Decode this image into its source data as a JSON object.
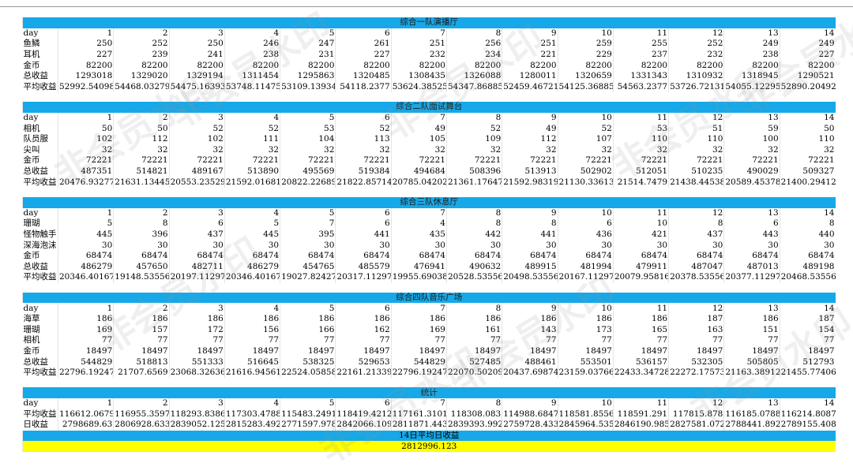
{
  "watermark": "非会员水印",
  "sections": [
    {
      "title": "综合一队演播厅",
      "rows": [
        {
          "label": "day",
          "values": [
            "1",
            "2",
            "3",
            "4",
            "5",
            "6",
            "7",
            "8",
            "9",
            "10",
            "11",
            "12",
            "13",
            "14"
          ]
        },
        {
          "label": "鱼鳞",
          "values": [
            "250",
            "252",
            "250",
            "246",
            "247",
            "261",
            "251",
            "256",
            "251",
            "259",
            "255",
            "252",
            "249",
            "249"
          ]
        },
        {
          "label": "耳机",
          "values": [
            "227",
            "239",
            "241",
            "238",
            "231",
            "227",
            "232",
            "234",
            "221",
            "229",
            "237",
            "232",
            "238",
            "227"
          ]
        },
        {
          "label": "金币",
          "values": [
            "82200",
            "82200",
            "82200",
            "82200",
            "82200",
            "82200",
            "82200",
            "82200",
            "82200",
            "82200",
            "82200",
            "82200",
            "82200",
            "82200"
          ]
        },
        {
          "label": "总收益",
          "values": [
            "1293018",
            "1329020",
            "1329194",
            "1311454",
            "1295863",
            "1320485",
            "1308435",
            "1326088",
            "1280011",
            "1320659",
            "1331343",
            "1310932",
            "1318945",
            "1290521"
          ]
        },
        {
          "label": "平均收益",
          "values": [
            "52992.54098",
            "54468.03279",
            "54475.16393",
            "53748.11475",
            "53109.13934",
            "54118.2377",
            "53624.38525",
            "54347.86885",
            "52459.46721",
            "54125.36885",
            "54563.2377",
            "53726.72131",
            "54055.12295",
            "52890.20492"
          ]
        }
      ]
    },
    {
      "title": "综合二队面试舞台",
      "rows": [
        {
          "label": "day",
          "values": [
            "1",
            "2",
            "3",
            "4",
            "5",
            "6",
            "7",
            "8",
            "9",
            "10",
            "11",
            "12",
            "13",
            "14"
          ]
        },
        {
          "label": "相机",
          "values": [
            "50",
            "50",
            "52",
            "52",
            "53",
            "52",
            "49",
            "52",
            "49",
            "52",
            "53",
            "51",
            "59",
            "50"
          ]
        },
        {
          "label": "队员服",
          "values": [
            "102",
            "112",
            "102",
            "111",
            "104",
            "113",
            "105",
            "109",
            "112",
            "107",
            "110",
            "110",
            "100",
            "110"
          ]
        },
        {
          "label": "尖叫",
          "values": [
            "32",
            "32",
            "32",
            "32",
            "32",
            "32",
            "32",
            "32",
            "32",
            "32",
            "32",
            "32",
            "32",
            "32"
          ]
        },
        {
          "label": "金币",
          "values": [
            "72221",
            "72221",
            "72221",
            "72221",
            "72221",
            "72221",
            "72221",
            "72221",
            "72221",
            "72221",
            "72221",
            "72221",
            "72221",
            "72221"
          ]
        },
        {
          "label": "总收益",
          "values": [
            "487351",
            "514821",
            "489167",
            "513890",
            "495569",
            "519384",
            "494684",
            "508396",
            "513913",
            "502902",
            "512051",
            "510235",
            "490029",
            "509327"
          ]
        },
        {
          "label": "平均收益",
          "values": [
            "20476.93277",
            "21631.13445",
            "20553.23529",
            "21592.01681",
            "20822.22689",
            "21822.85714",
            "20785.04202",
            "21361.17647",
            "21592.98319",
            "21130.33613",
            "21514.7479",
            "21438.44538",
            "20589.45378",
            "21400.29412"
          ]
        }
      ]
    },
    {
      "title": "综合三队休息厅",
      "rows": [
        {
          "label": "day",
          "values": [
            "1",
            "2",
            "3",
            "4",
            "5",
            "6",
            "7",
            "8",
            "9",
            "10",
            "11",
            "12",
            "13",
            "14"
          ]
        },
        {
          "label": "珊瑚",
          "values": [
            "5",
            "8",
            "6",
            "5",
            "7",
            "6",
            "4",
            "8",
            "8",
            "6",
            "10",
            "8",
            "6",
            "8"
          ]
        },
        {
          "label": "怪物触手",
          "values": [
            "445",
            "396",
            "437",
            "445",
            "395",
            "441",
            "435",
            "442",
            "441",
            "436",
            "421",
            "437",
            "443",
            "440"
          ]
        },
        {
          "label": "深海泡沫",
          "values": [
            "30",
            "30",
            "30",
            "30",
            "30",
            "30",
            "30",
            "30",
            "30",
            "30",
            "30",
            "30",
            "30",
            "30"
          ]
        },
        {
          "label": "金币",
          "values": [
            "68474",
            "68474",
            "68474",
            "68474",
            "68474",
            "68474",
            "68474",
            "68474",
            "68474",
            "68474",
            "68474",
            "68474",
            "68474",
            "68474"
          ]
        },
        {
          "label": "总收益",
          "values": [
            "486279",
            "457650",
            "482711",
            "486279",
            "454765",
            "485579",
            "476941",
            "490632",
            "489915",
            "481994",
            "479911",
            "487047",
            "487013",
            "489198"
          ]
        },
        {
          "label": "平均收益",
          "values": [
            "20346.40167",
            "19148.53556",
            "20197.11297",
            "20346.40167",
            "19027.82427",
            "20317.11297",
            "19955.69038",
            "20528.53556",
            "20498.53556",
            "20167.11297",
            "20079.95816",
            "20378.53556",
            "20377.11297",
            "20468.53556"
          ]
        }
      ]
    },
    {
      "title": "综合四队音乐广场",
      "rows": [
        {
          "label": "day",
          "values": [
            "1",
            "2",
            "3",
            "4",
            "5",
            "6",
            "7",
            "8",
            "9",
            "10",
            "11",
            "12",
            "13",
            "14"
          ]
        },
        {
          "label": "海草",
          "values": [
            "186",
            "186",
            "186",
            "186",
            "186",
            "186",
            "186",
            "186",
            "186",
            "186",
            "186",
            "187",
            "186",
            "187"
          ]
        },
        {
          "label": "珊瑚",
          "values": [
            "169",
            "157",
            "172",
            "156",
            "166",
            "162",
            "169",
            "161",
            "143",
            "173",
            "165",
            "163",
            "151",
            "154"
          ]
        },
        {
          "label": "相机",
          "values": [
            "77",
            "77",
            "77",
            "77",
            "77",
            "77",
            "77",
            "77",
            "77",
            "77",
            "77",
            "77",
            "77",
            "77"
          ]
        },
        {
          "label": "金币",
          "values": [
            "18497",
            "18497",
            "18497",
            "18497",
            "18497",
            "18497",
            "18497",
            "18497",
            "18497",
            "18497",
            "18497",
            "18497",
            "18497",
            "18497"
          ]
        },
        {
          "label": "总收益",
          "values": [
            "544829",
            "518813",
            "551333",
            "516645",
            "538325",
            "529653",
            "544829",
            "527485",
            "488461",
            "553501",
            "536157",
            "532305",
            "505805",
            "512793"
          ]
        },
        {
          "label": "平均收益",
          "values": [
            "22796.19247",
            "21707.6569",
            "23068.32636",
            "21616.94561",
            "22524.05858",
            "22161.21339",
            "22796.19247",
            "22070.50209",
            "20437.69874",
            "23159.03766",
            "22433.34728",
            "22272.17573",
            "21163.38912",
            "21455.77406"
          ]
        }
      ]
    },
    {
      "title": "统计",
      "rows": [
        {
          "label": "day",
          "values": [
            "1",
            "2",
            "3",
            "4",
            "5",
            "6",
            "7",
            "8",
            "9",
            "10",
            "11",
            "12",
            "13",
            "14"
          ]
        },
        {
          "label": "平均收益",
          "values": [
            "116612.0679",
            "116955.3597",
            "118293.8386",
            "117303.4788",
            "115483.2491",
            "118419.4212",
            "117161.3101",
            "118308.083",
            "114988.6847",
            "118581.8556",
            "118591.291",
            "117815.878",
            "116185.0788",
            "116214.8087"
          ]
        },
        {
          "label": "日收益",
          "values": [
            "2798689.63",
            "2806928.633",
            "2839052.125",
            "2815283.492",
            "2771597.978",
            "2842066.109",
            "2811871.443",
            "2839393.992",
            "2759728.433",
            "2845964.535",
            "2846190.985",
            "2827581.072",
            "2788441.892",
            "2789155.408"
          ]
        }
      ]
    }
  ],
  "summary": {
    "title": "14日平均日收益",
    "value": "2812996.123"
  }
}
